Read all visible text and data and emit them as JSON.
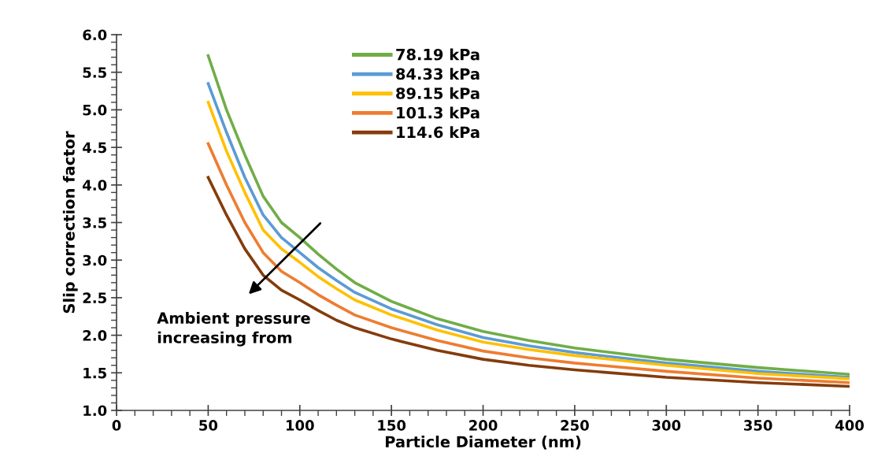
{
  "chart_data": {
    "type": "line",
    "xlabel": "Particle Diameter (nm)",
    "ylabel": "Slip correction factor",
    "x": [
      50,
      60,
      70,
      80,
      90,
      100,
      110,
      120,
      130,
      150,
      175,
      200,
      225,
      250,
      300,
      350,
      400
    ],
    "series": [
      {
        "name": "78.19 kPa",
        "color": "#70ad47",
        "values": [
          5.72,
          5.0,
          4.4,
          3.85,
          3.5,
          3.3,
          3.08,
          2.88,
          2.7,
          2.45,
          2.22,
          2.05,
          1.93,
          1.83,
          1.68,
          1.57,
          1.48
        ]
      },
      {
        "name": "84.33 kPa",
        "color": "#5b9bd5",
        "values": [
          5.35,
          4.7,
          4.1,
          3.6,
          3.3,
          3.1,
          2.9,
          2.73,
          2.57,
          2.35,
          2.14,
          1.97,
          1.86,
          1.77,
          1.63,
          1.52,
          1.44
        ]
      },
      {
        "name": "89.15 kPa",
        "color": "#ffc000",
        "values": [
          5.1,
          4.45,
          3.9,
          3.4,
          3.15,
          2.97,
          2.78,
          2.62,
          2.47,
          2.27,
          2.07,
          1.91,
          1.81,
          1.73,
          1.6,
          1.49,
          1.42
        ]
      },
      {
        "name": "101.3 kPa",
        "color": "#ed7d31",
        "values": [
          4.55,
          4.0,
          3.5,
          3.1,
          2.85,
          2.7,
          2.54,
          2.4,
          2.27,
          2.1,
          1.93,
          1.79,
          1.7,
          1.63,
          1.52,
          1.43,
          1.37
        ]
      },
      {
        "name": "114.6 kPa",
        "color": "#843c0c",
        "values": [
          4.1,
          3.6,
          3.15,
          2.8,
          2.6,
          2.47,
          2.33,
          2.2,
          2.1,
          1.95,
          1.8,
          1.68,
          1.6,
          1.54,
          1.44,
          1.37,
          1.32
        ]
      }
    ],
    "xlim": [
      0,
      400
    ],
    "xticks": [
      0,
      50,
      100,
      150,
      200,
      250,
      300,
      350,
      400
    ],
    "ylim": [
      1.0,
      6.0
    ],
    "yticks": [
      {
        "value": 1.0,
        "label": "1.0"
      },
      {
        "value": 1.5,
        "label": "1.5"
      },
      {
        "value": 2.0,
        "label": "2.0"
      },
      {
        "value": 2.5,
        "label": "2.5"
      },
      {
        "value": 3.0,
        "label": "3.0"
      },
      {
        "value": 3.5,
        "label": "3.5"
      },
      {
        "value": 4.0,
        "label": "4.0"
      },
      {
        "value": 4.5,
        "label": "4.5"
      },
      {
        "value": 5.0,
        "label": "5.0"
      },
      {
        "value": 5.5,
        "label": "5.5"
      },
      {
        "value": 6.0,
        "label": "6.0"
      }
    ],
    "annotations": [
      "Ambient pressure\nincreasing from"
    ],
    "legend": "top",
    "grid": false,
    "marker": "none",
    "line_style": "solid"
  }
}
